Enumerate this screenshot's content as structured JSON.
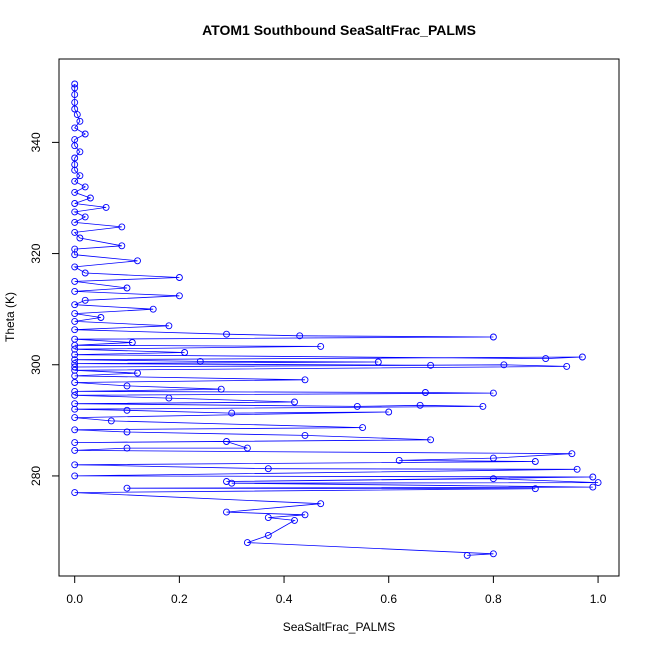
{
  "chart_data": {
    "type": "scatter",
    "title": "ATOM1 Southbound SeaSaltFrac_PALMS",
    "xlabel": "SeaSaltFrac_PALMS",
    "ylabel": "Theta (K)",
    "xlim": [
      -0.03,
      1.04
    ],
    "ylim": [
      262,
      355
    ],
    "xticks": [
      0.0,
      0.2,
      0.4,
      0.6,
      0.8,
      1.0
    ],
    "xtick_labels": [
      "0.0",
      "0.2",
      "0.4",
      "0.6",
      "0.8",
      "1.0"
    ],
    "yticks": [
      280,
      300,
      320,
      340
    ],
    "ytick_labels": [
      "280",
      "300",
      "320",
      "340"
    ],
    "grid": false,
    "series_color": "#0000ff",
    "marker": "open-circle",
    "connected": true,
    "points": [
      [
        0.0,
        350.5
      ],
      [
        0.0,
        349.8
      ],
      [
        0.0,
        348.6
      ],
      [
        0.0,
        347.2
      ],
      [
        0.0,
        346.0
      ],
      [
        0.005,
        345.0
      ],
      [
        0.01,
        343.8
      ],
      [
        0.0,
        342.6
      ],
      [
        0.02,
        341.5
      ],
      [
        0.0,
        340.5
      ],
      [
        0.0,
        339.4
      ],
      [
        0.01,
        338.3
      ],
      [
        0.0,
        337.2
      ],
      [
        0.0,
        336.0
      ],
      [
        0.0,
        335.0
      ],
      [
        0.01,
        334.0
      ],
      [
        0.0,
        333.0
      ],
      [
        0.02,
        332.0
      ],
      [
        0.0,
        331.0
      ],
      [
        0.03,
        330.0
      ],
      [
        0.0,
        329.0
      ],
      [
        0.06,
        328.3
      ],
      [
        0.0,
        327.5
      ],
      [
        0.02,
        326.6
      ],
      [
        0.0,
        325.6
      ],
      [
        0.09,
        324.8
      ],
      [
        0.0,
        323.8
      ],
      [
        0.01,
        322.8
      ],
      [
        0.09,
        321.4
      ],
      [
        0.0,
        320.8
      ],
      [
        0.0,
        319.8
      ],
      [
        0.12,
        318.7
      ],
      [
        0.0,
        317.6
      ],
      [
        0.02,
        316.5
      ],
      [
        0.2,
        315.7
      ],
      [
        0.0,
        315.0
      ],
      [
        0.1,
        313.8
      ],
      [
        0.0,
        313.2
      ],
      [
        0.2,
        312.4
      ],
      [
        0.02,
        311.6
      ],
      [
        0.0,
        310.8
      ],
      [
        0.15,
        310.0
      ],
      [
        0.0,
        309.2
      ],
      [
        0.05,
        308.5
      ],
      [
        0.0,
        307.8
      ],
      [
        0.18,
        307.0
      ],
      [
        0.0,
        306.3
      ],
      [
        0.29,
        305.5
      ],
      [
        0.43,
        305.2
      ],
      [
        0.8,
        305.0
      ],
      [
        0.0,
        304.6
      ],
      [
        0.11,
        304.0
      ],
      [
        0.0,
        303.5
      ],
      [
        0.47,
        303.3
      ],
      [
        0.0,
        302.8
      ],
      [
        0.21,
        302.2
      ],
      [
        0.0,
        301.8
      ],
      [
        0.9,
        301.1
      ],
      [
        0.97,
        301.4
      ],
      [
        0.0,
        300.9
      ],
      [
        0.24,
        300.6
      ],
      [
        0.58,
        300.5
      ],
      [
        0.0,
        300.2
      ],
      [
        0.68,
        299.9
      ],
      [
        0.0,
        299.6
      ],
      [
        0.82,
        300.0
      ],
      [
        0.94,
        299.7
      ],
      [
        0.0,
        299.0
      ],
      [
        0.12,
        298.5
      ],
      [
        0.0,
        298.0
      ],
      [
        0.44,
        297.3
      ],
      [
        0.0,
        296.8
      ],
      [
        0.1,
        296.2
      ],
      [
        0.28,
        295.6
      ],
      [
        0.0,
        295.2
      ],
      [
        0.67,
        295.0
      ],
      [
        0.8,
        294.9
      ],
      [
        0.0,
        294.5
      ],
      [
        0.18,
        294.0
      ],
      [
        0.42,
        293.3
      ],
      [
        0.0,
        293.0
      ],
      [
        0.54,
        292.5
      ],
      [
        0.66,
        292.7
      ],
      [
        0.78,
        292.5
      ],
      [
        0.0,
        292.0
      ],
      [
        0.1,
        291.8
      ],
      [
        0.3,
        291.3
      ],
      [
        0.6,
        291.5
      ],
      [
        0.0,
        290.5
      ],
      [
        0.07,
        289.9
      ],
      [
        0.55,
        288.7
      ],
      [
        0.0,
        288.3
      ],
      [
        0.1,
        287.9
      ],
      [
        0.44,
        287.3
      ],
      [
        0.68,
        286.5
      ],
      [
        0.0,
        286.0
      ],
      [
        0.29,
        286.2
      ],
      [
        0.33,
        285.0
      ],
      [
        0.1,
        285.0
      ],
      [
        0.0,
        284.6
      ],
      [
        0.95,
        284.0
      ],
      [
        0.8,
        283.2
      ],
      [
        0.62,
        282.8
      ],
      [
        0.88,
        282.6
      ],
      [
        0.0,
        282.0
      ],
      [
        0.37,
        281.3
      ],
      [
        0.96,
        281.2
      ],
      [
        0.0,
        280.0
      ],
      [
        0.99,
        279.8
      ],
      [
        0.29,
        279.0
      ],
      [
        0.8,
        279.5
      ],
      [
        1.0,
        278.8
      ],
      [
        0.3,
        278.7
      ],
      [
        0.99,
        278.0
      ],
      [
        0.1,
        277.8
      ],
      [
        0.88,
        277.7
      ],
      [
        0.0,
        277.0
      ],
      [
        0.47,
        275.0
      ],
      [
        0.29,
        273.5
      ],
      [
        0.44,
        273.0
      ],
      [
        0.37,
        272.5
      ],
      [
        0.42,
        272.0
      ],
      [
        0.37,
        269.3
      ],
      [
        0.33,
        268.0
      ],
      [
        0.8,
        266.0
      ],
      [
        0.75,
        265.7
      ]
    ]
  }
}
